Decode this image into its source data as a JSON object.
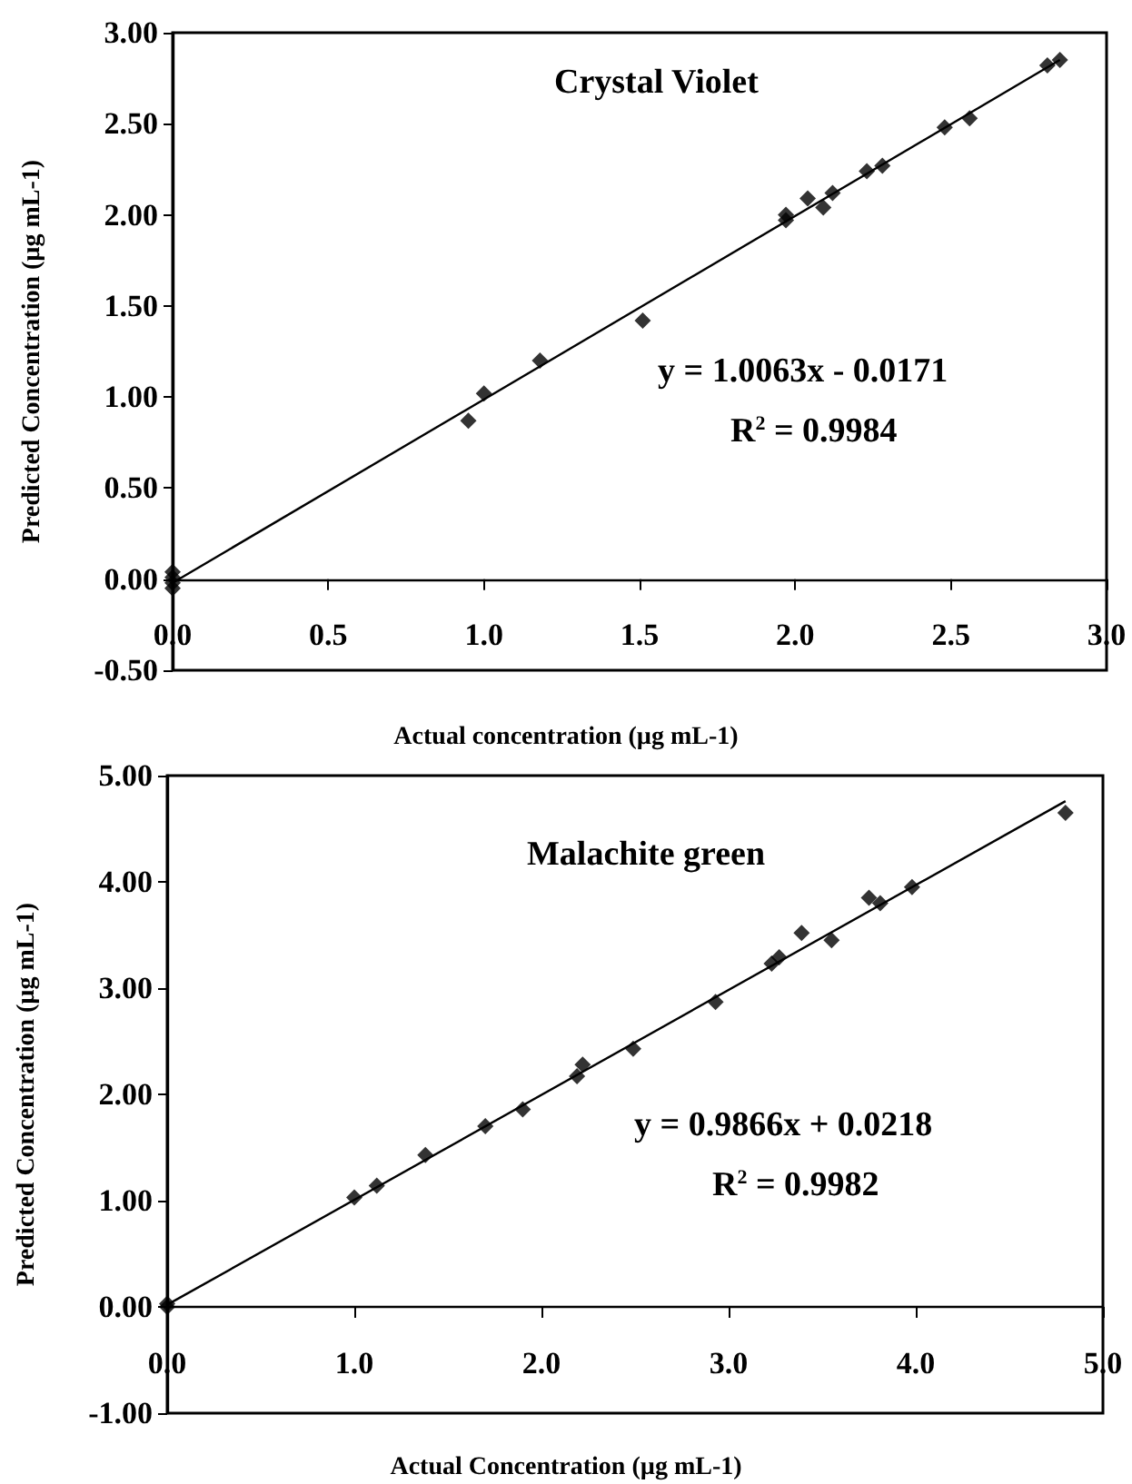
{
  "chart_data": [
    {
      "type": "scatter",
      "title": "Crystal Violet",
      "xlabel": "Actual concentration (µg mL-1)",
      "ylabel": "Predicted Concentration (µg mL-1)",
      "marker": "diamond",
      "annotations": [
        "y = 1.0063x - 0.0171",
        "R$^{2}$ = 0.9984"
      ],
      "xlim": [
        0,
        3
      ],
      "xticks": [
        {
          "value": 0,
          "label": "0.0"
        },
        {
          "value": 0.5,
          "label": "0.5"
        },
        {
          "value": 1,
          "label": "1.0"
        },
        {
          "value": 1.5,
          "label": "1.5"
        },
        {
          "value": 2,
          "label": "2.0"
        },
        {
          "value": 2.5,
          "label": "2.5"
        },
        {
          "value": 3,
          "label": "3.0"
        }
      ],
      "ylim": [
        -0.5,
        3
      ],
      "yticks": [
        {
          "value": -0.5,
          "label": "-0.50"
        },
        {
          "value": 0,
          "label": "0.00"
        },
        {
          "value": 0.5,
          "label": "0.50"
        },
        {
          "value": 1,
          "label": "1.00"
        },
        {
          "value": 1.5,
          "label": "1.50"
        },
        {
          "value": 2,
          "label": "2.00"
        },
        {
          "value": 2.5,
          "label": "2.50"
        },
        {
          "value": 3,
          "label": "3.00"
        }
      ],
      "series": [
        {
          "color": "#000000",
          "x": [
            0,
            0,
            0,
            0,
            0.95,
            1.0,
            1.18,
            1.51,
            1.97,
            1.97,
            2.04,
            2.09,
            2.12,
            2.23,
            2.28,
            2.48,
            2.56,
            2.81,
            2.85
          ],
          "values": [
            0.04,
            0.01,
            -0.02,
            -0.05,
            0.87,
            1.02,
            1.2,
            1.42,
            1.97,
            2.0,
            2.09,
            2.04,
            2.12,
            2.24,
            2.27,
            2.48,
            2.53,
            2.82,
            2.85
          ]
        },
        {
          "type": "line",
          "color": "#000000",
          "marker": "none",
          "line_style": "solid",
          "x": [
            0,
            2.85
          ],
          "values": [
            -0.02,
            2.85
          ]
        }
      ]
    },
    {
      "type": "scatter",
      "title": "Malachite green",
      "xlabel": "Actual Concentration (µg mL-1)",
      "ylabel": "Predicted Concentration (µg mL-1)",
      "marker": "diamond",
      "annotations": [
        "y = 0.9866x + 0.0218",
        "R$^{2}$ = 0.9982"
      ],
      "xlim": [
        0,
        5
      ],
      "xticks": [
        {
          "value": 0,
          "label": "0.0"
        },
        {
          "value": 1,
          "label": "1.0"
        },
        {
          "value": 2,
          "label": "2.0"
        },
        {
          "value": 3,
          "label": "3.0"
        },
        {
          "value": 4,
          "label": "4.0"
        },
        {
          "value": 5,
          "label": "5.0"
        }
      ],
      "ylim": [
        -1,
        5
      ],
      "yticks": [
        {
          "value": -1,
          "label": "-1.00"
        },
        {
          "value": 0,
          "label": "0.00"
        },
        {
          "value": 1,
          "label": "1.00"
        },
        {
          "value": 2,
          "label": "2.00"
        },
        {
          "value": 3,
          "label": "3.00"
        },
        {
          "value": 4,
          "label": "4.00"
        },
        {
          "value": 5,
          "label": "5.00"
        }
      ],
      "series": [
        {
          "color": "#000000",
          "x": [
            0,
            0,
            1.0,
            1.12,
            1.38,
            1.7,
            1.9,
            2.19,
            2.22,
            2.49,
            2.93,
            3.23,
            3.27,
            3.39,
            3.55,
            3.75,
            3.81,
            3.98,
            4.8
          ],
          "values": [
            0.03,
            0.0,
            1.03,
            1.14,
            1.43,
            1.7,
            1.86,
            2.17,
            2.28,
            2.43,
            2.87,
            3.23,
            3.29,
            3.52,
            3.45,
            3.85,
            3.8,
            3.95,
            4.65
          ]
        },
        {
          "type": "line",
          "color": "#000000",
          "marker": "none",
          "line_style": "solid",
          "x": [
            0,
            4.8
          ],
          "values": [
            0.02,
            4.76
          ]
        }
      ]
    }
  ]
}
